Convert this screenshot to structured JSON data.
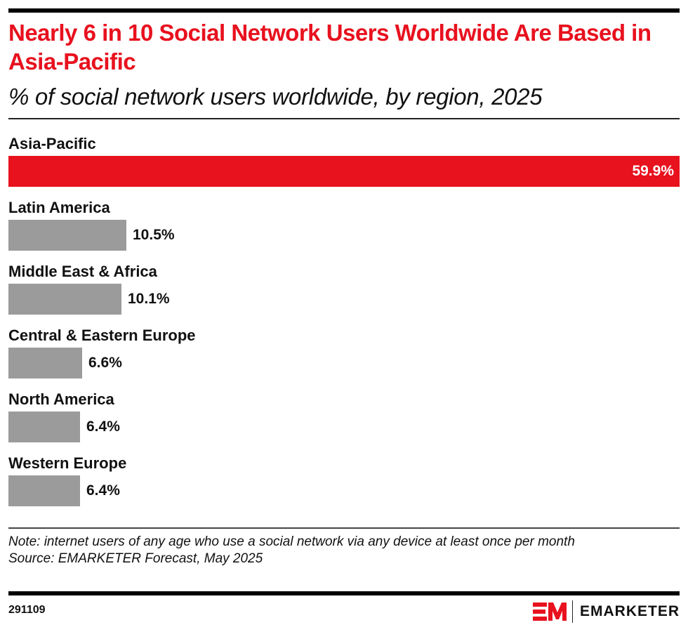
{
  "header": {
    "title": "Nearly 6 in 10 Social Network Users Worldwide Are Based in Asia-Pacific",
    "subtitle": "% of social network users worldwide, by region, 2025"
  },
  "colors": {
    "accent": "#e8111e",
    "bar_default": "#9b9b9b",
    "text": "#111111"
  },
  "chart_data": {
    "type": "bar",
    "orientation": "horizontal",
    "title": "Nearly 6 in 10 Social Network Users Worldwide Are Based in Asia-Pacific",
    "subtitle": "% of social network users worldwide, by region, 2025",
    "xlabel": "",
    "ylabel": "",
    "unit": "%",
    "xlim": [
      0,
      59.9
    ],
    "grid": false,
    "legend": "none",
    "categories": [
      "Asia-Pacific",
      "Latin America",
      "Middle East & Africa",
      "Central & Eastern Europe",
      "North America",
      "Western Europe"
    ],
    "values": [
      59.9,
      10.5,
      10.1,
      6.6,
      6.4,
      6.4
    ],
    "labels": [
      "59.9%",
      "10.5%",
      "10.1%",
      "6.6%",
      "6.4%",
      "6.4%"
    ],
    "highlight_index": 0
  },
  "footer": {
    "note": "Note: internet users of any age who use a social network via any device at least once per month",
    "source": "Source: EMARKETER Forecast, May 2025",
    "chart_id": "291109",
    "brand": "EMARKETER"
  }
}
